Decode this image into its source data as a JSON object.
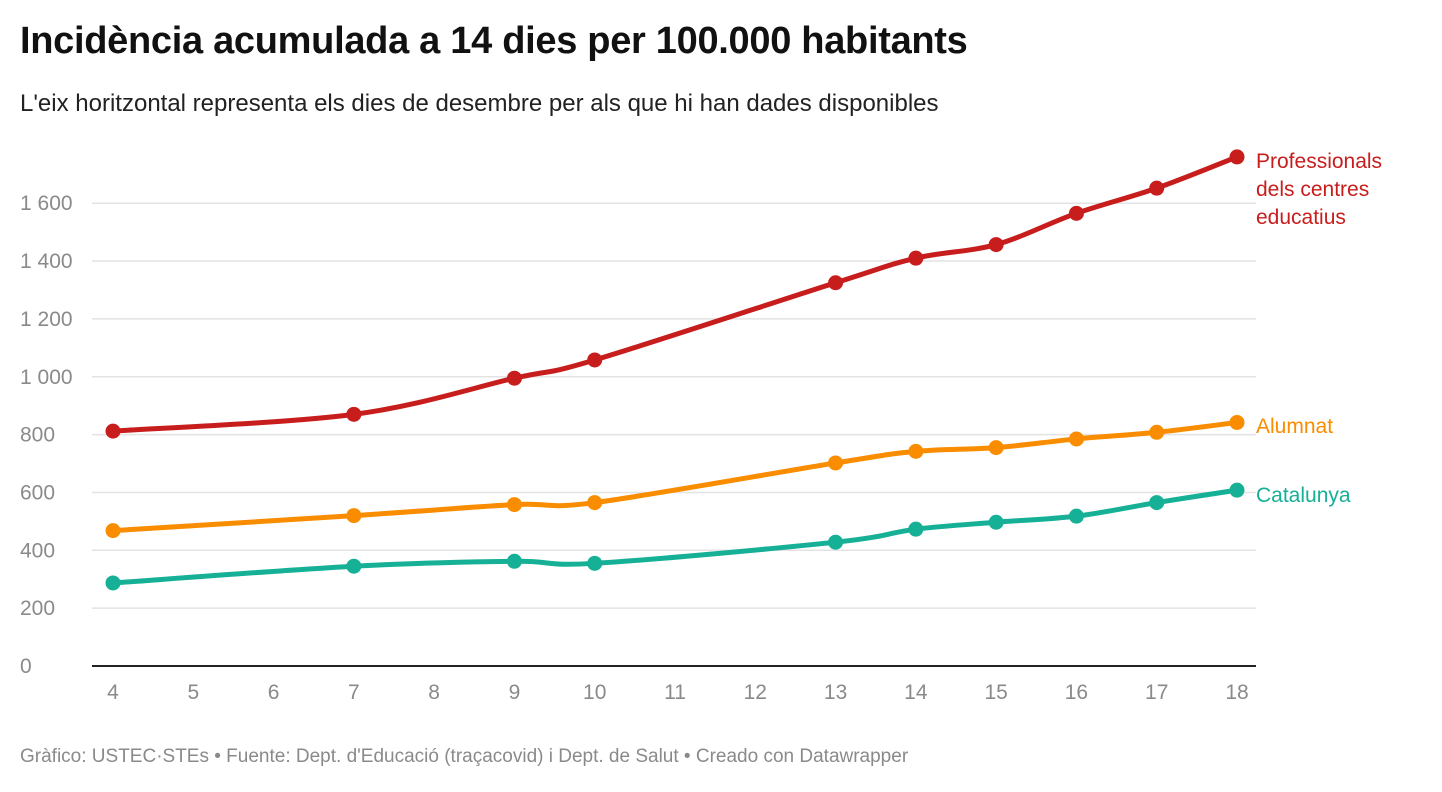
{
  "title": "Incidència acumulada a 14 dies per 100.000 habitants",
  "subtitle": "L'eix horitzontal representa els dies de desembre per als que hi han dades disponibles",
  "footer": "Gràfico: USTEC·STEs • Fuente: Dept. d'Educació (traçacovid) i Dept. de Salut • Creado con Datawrapper",
  "chart_data": {
    "type": "line",
    "title": "Incidència acumulada a 14 dies per 100.000 habitants",
    "subtitle": "L'eix horitzontal representa els dies de desembre per als que hi han dades disponibles",
    "xlabel": "",
    "ylabel": "",
    "xlim": [
      4,
      18
    ],
    "ylim": [
      0,
      1700
    ],
    "x_ticks": [
      4,
      5,
      6,
      7,
      8,
      9,
      10,
      11,
      12,
      13,
      14,
      15,
      16,
      17,
      18
    ],
    "y_ticks": [
      0,
      200,
      400,
      600,
      800,
      1000,
      1200,
      1400,
      1600
    ],
    "y_tick_labels": [
      "0",
      "200",
      "400",
      "600",
      "800",
      "1 000",
      "1 200",
      "1 400",
      "1 600"
    ],
    "grid": true,
    "legend": "direct labels at line ends (right)",
    "series": [
      {
        "name": "Professionals dels centres educatius",
        "label_lines": [
          "Professionals",
          "dels centres",
          "educatius"
        ],
        "color": "#c71e1d",
        "x": [
          4,
          7,
          9,
          10,
          13,
          14,
          15,
          16,
          17,
          18
        ],
        "values": [
          812,
          870,
          995,
          1058,
          1325,
          1410,
          1457,
          1565,
          1652,
          1760
        ]
      },
      {
        "name": "Alumnat",
        "label_lines": [
          "Alumnat"
        ],
        "color": "#fa8c00",
        "x": [
          4,
          7,
          9,
          10,
          13,
          14,
          15,
          16,
          17,
          18
        ],
        "values": [
          468,
          520,
          558,
          565,
          702,
          742,
          755,
          785,
          808,
          842
        ]
      },
      {
        "name": "Catalunya",
        "label_lines": [
          "Catalunya"
        ],
        "color": "#15b096",
        "x": [
          4,
          7,
          9,
          10,
          13,
          14,
          15,
          16,
          17,
          18
        ],
        "values": [
          287,
          345,
          362,
          355,
          428,
          473,
          497,
          518,
          565,
          608
        ]
      }
    ]
  }
}
